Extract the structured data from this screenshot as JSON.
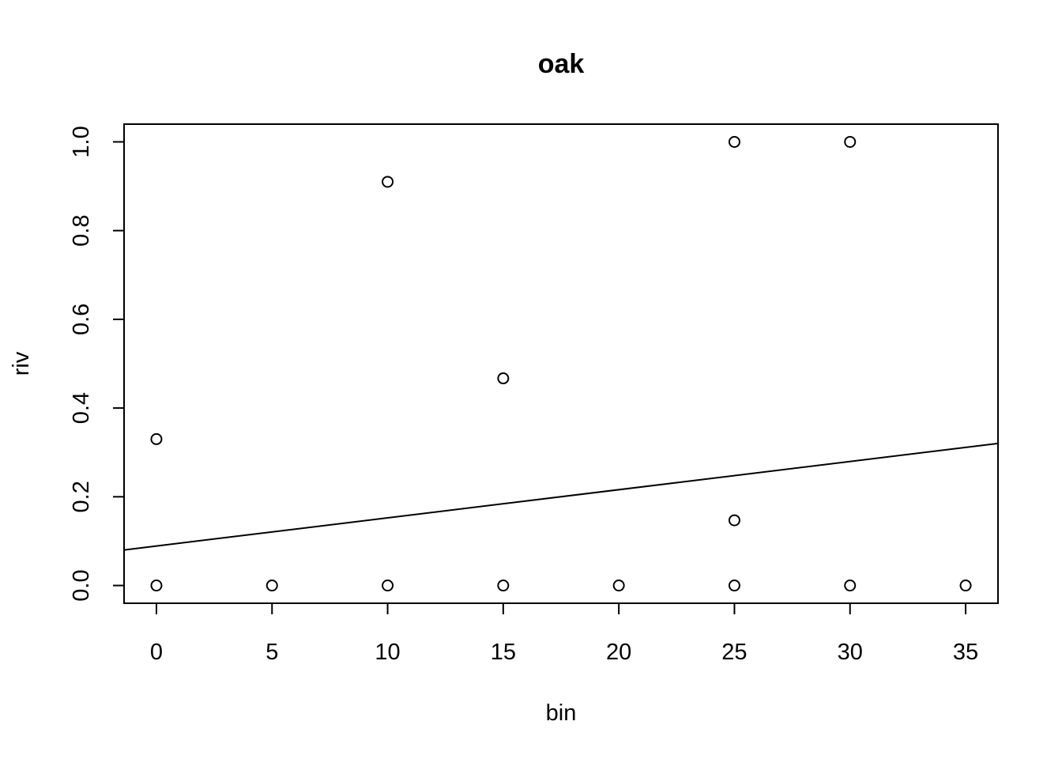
{
  "chart_data": {
    "type": "scatter",
    "title": "oak",
    "xlabel": "bin",
    "ylabel": "riv",
    "xlim": [
      -1.4,
      36.4
    ],
    "ylim": [
      -0.04,
      1.04
    ],
    "x_ticks": [
      0,
      5,
      10,
      15,
      20,
      25,
      30,
      35
    ],
    "x_tick_labels": [
      "0",
      "5",
      "10",
      "15",
      "20",
      "25",
      "30",
      "35"
    ],
    "y_ticks": [
      0.0,
      0.2,
      0.4,
      0.6,
      0.8,
      1.0
    ],
    "y_tick_labels": [
      "0.0",
      "0.2",
      "0.4",
      "0.6",
      "0.8",
      "1.0"
    ],
    "grid": false,
    "points": [
      {
        "x": 0,
        "y": 0.33
      },
      {
        "x": 0,
        "y": 0.0
      },
      {
        "x": 5,
        "y": 0.0
      },
      {
        "x": 10,
        "y": 0.91
      },
      {
        "x": 10,
        "y": 0.0
      },
      {
        "x": 15,
        "y": 0.467
      },
      {
        "x": 15,
        "y": 0.0
      },
      {
        "x": 20,
        "y": 0.0
      },
      {
        "x": 25,
        "y": 1.0
      },
      {
        "x": 25,
        "y": 0.147
      },
      {
        "x": 25,
        "y": 0.0
      },
      {
        "x": 30,
        "y": 1.0
      },
      {
        "x": 30,
        "y": 0.0
      },
      {
        "x": 35,
        "y": 0.0
      }
    ],
    "fit_line": {
      "intercept": 0.089,
      "slope": 0.00635
    }
  }
}
